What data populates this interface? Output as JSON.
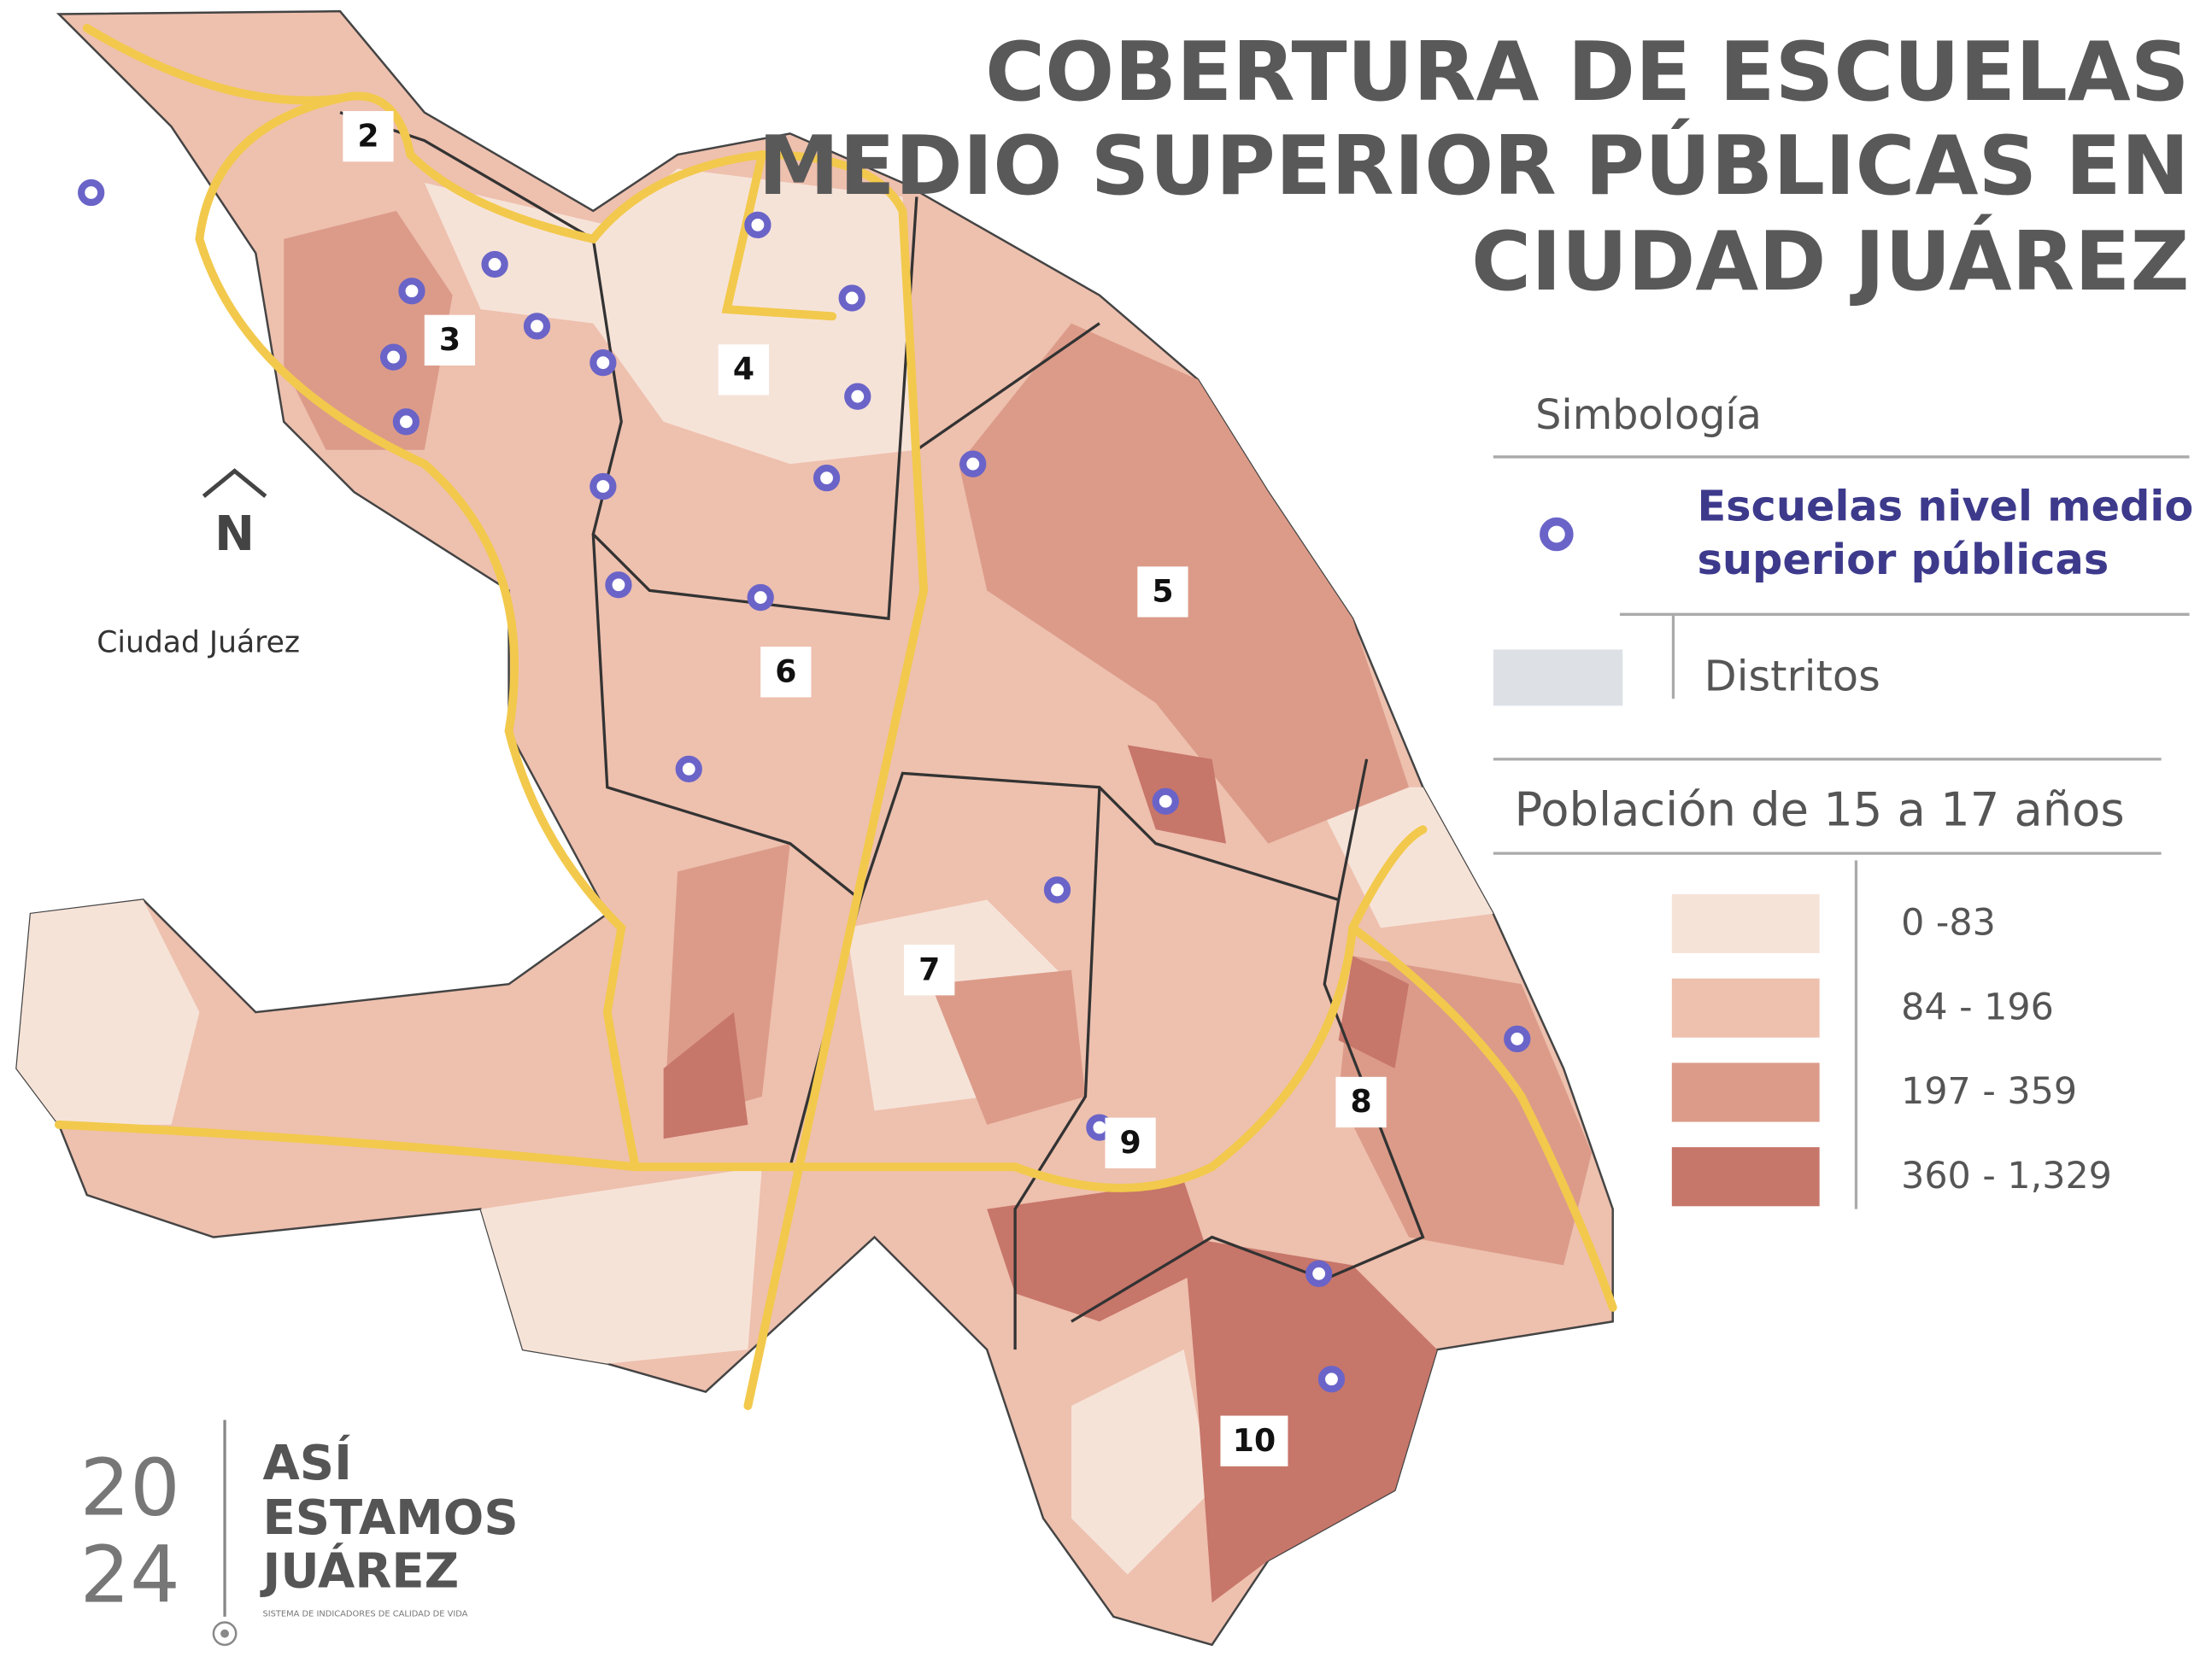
{
  "title": {
    "lines": [
      "COBERTURA DE ESCUELAS",
      "MEDIO SUPERIOR PÚBLICAS EN",
      "CIUDAD JUÁREZ"
    ]
  },
  "legend": {
    "heading": "Simbología",
    "school_label": {
      "lines": [
        "Escuelas nivel medio",
        "superior públicas"
      ]
    },
    "district_label": "Distritos",
    "population_heading": "Población de 15 a 17 años",
    "classes": [
      "0 -83",
      "84 - 196",
      "197 - 359",
      "360 - 1,329"
    ]
  },
  "districts": [
    "2",
    "3",
    "4",
    "5",
    "6",
    "7",
    "8",
    "9",
    "10"
  ],
  "place_label": "Ciudad Juárez",
  "north": "N",
  "logo": {
    "year": [
      "20",
      "24"
    ],
    "lines": [
      "ASÍ",
      "ESTAMOS",
      "JUÁREZ"
    ],
    "tagline": "SISTEMA DE INDICADORES DE CALIDAD DE VIDA"
  }
}
